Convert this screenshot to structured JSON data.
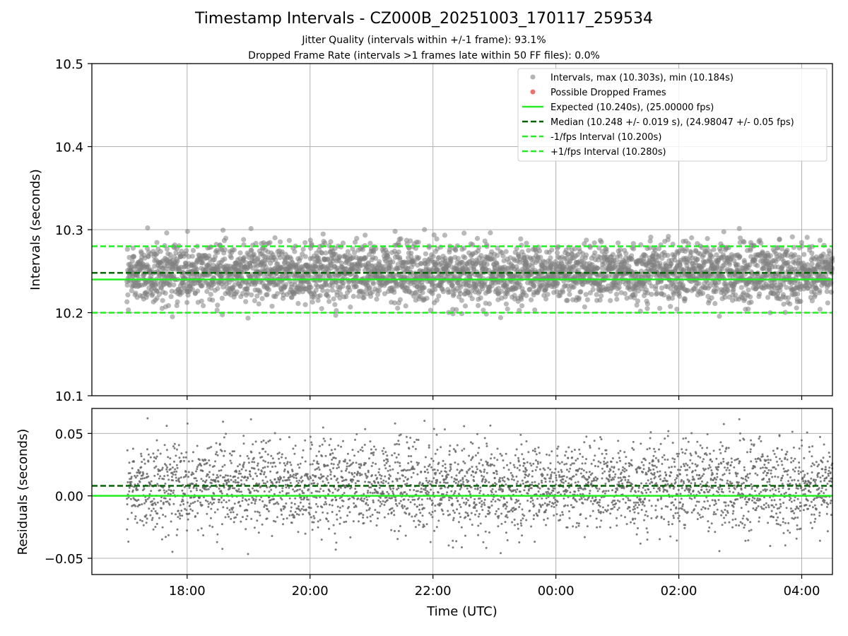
{
  "chart_data": {
    "type": "scatter",
    "title": "Timestamp Intervals - CZ000B_20251003_170117_259534",
    "subtitles": [
      "Jitter Quality (intervals within +/-1 frame): 93.1%",
      "Dropped Frame Rate (intervals >1 frames late within 50 FF files): 0.0%"
    ],
    "top_panel": {
      "ylabel": "Intervals (seconds)",
      "ylim": [
        10.1,
        10.5
      ],
      "yticks": [
        "10.1",
        "10.2",
        "10.3",
        "10.4",
        "10.5"
      ],
      "grid": true,
      "legend_position": "top-right",
      "series": [
        {
          "name": "Intervals, max (10.303s), min (10.184s)",
          "kind": "scatter",
          "color": "#808080"
        },
        {
          "name": "Possible Dropped Frames",
          "kind": "scatter",
          "color": "#ee5555"
        },
        {
          "name": "Expected (10.240s), (25.00000 fps)",
          "kind": "hline",
          "y": 10.24,
          "color": "#22ee22",
          "style": "solid"
        },
        {
          "name": "Median (10.248 +/- 0.019 s), (24.98047 +/- 0.05 fps)",
          "kind": "hline",
          "y": 10.248,
          "color": "#006400",
          "style": "dashed"
        },
        {
          "name": "-1/fps Interval (10.200s)",
          "kind": "hline",
          "y": 10.2,
          "color": "#22ee22",
          "style": "dashed"
        },
        {
          "name": "+1/fps Interval (10.280s)",
          "kind": "hline",
          "y": 10.28,
          "color": "#22ee22",
          "style": "dashed"
        }
      ],
      "interval_stats": {
        "max": 10.303,
        "min": 10.184,
        "median": 10.248,
        "std": 0.019,
        "expected": 10.24,
        "n_points_approx": 3500
      }
    },
    "bottom_panel": {
      "ylabel": "Residuals (seconds)",
      "ylim": [
        -0.063,
        0.07
      ],
      "yticks": [
        {
          "value": 0.05,
          "label": "0.05"
        },
        {
          "value": 0.0,
          "label": "0.00"
        },
        {
          "value": -0.05,
          "label": "−0.05"
        }
      ],
      "hlines": [
        {
          "y": 0.0,
          "color": "#22ee22",
          "style": "solid"
        },
        {
          "y": 0.008,
          "color": "#006400",
          "style": "dashed"
        }
      ]
    },
    "x_axis": {
      "xlabel": "Time (UTC)",
      "range_hours": [
        16.45,
        28.5
      ],
      "data_start_hour": 17.02,
      "data_end_hour": 28.5,
      "ticks": [
        {
          "hour": 18,
          "label": "18:00"
        },
        {
          "hour": 20,
          "label": "20:00"
        },
        {
          "hour": 22,
          "label": "22:00"
        },
        {
          "hour": 24,
          "label": "00:00"
        },
        {
          "hour": 26,
          "label": "02:00"
        },
        {
          "hour": 28,
          "label": "04:00"
        }
      ]
    },
    "colors": {
      "points": "#808080",
      "expected": "#22ee22",
      "median": "#006400",
      "dropped": "#ee5555",
      "grid": "#b0b0b0"
    }
  }
}
